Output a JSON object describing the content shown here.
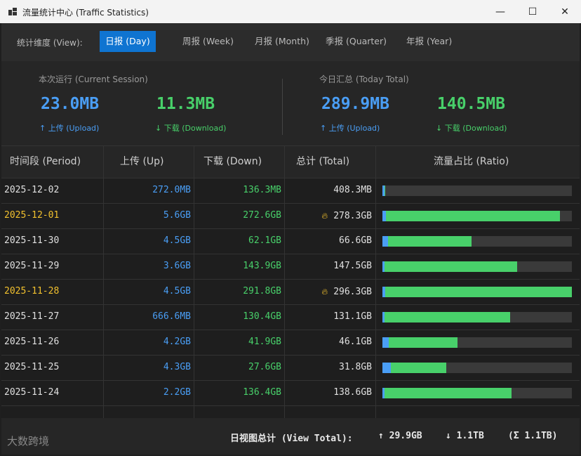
{
  "window": {
    "title": "流量统计中心 (Traffic Statistics)",
    "minimize": "—",
    "maximize": "☐",
    "close": "✕"
  },
  "tabs": {
    "label": "统计维度 (View):",
    "items": [
      {
        "label": "日报 (Day)",
        "active": true
      },
      {
        "label": "周报 (Week)",
        "active": false
      },
      {
        "label": "月报 (Month)",
        "active": false
      },
      {
        "label": "季报 (Quarter)",
        "active": false
      },
      {
        "label": "年报 (Year)",
        "active": false
      }
    ]
  },
  "summary": {
    "session": {
      "title": "本次运行 (Current Session)",
      "upload": "23.0MB",
      "download": "11.3MB",
      "upload_label": "↑ 上传 (Upload)",
      "download_label": "↓ 下载 (Download)"
    },
    "today": {
      "title": "今日汇总 (Today Total)",
      "upload": "289.9MB",
      "download": "140.5MB",
      "upload_label": "↑ 上传 (Upload)",
      "download_label": "↓ 下载 (Download)"
    }
  },
  "table": {
    "headers": {
      "period": "时间段 (Period)",
      "up": "上传 (Up)",
      "down": "下载 (Down)",
      "total": "总计 (Total)",
      "ratio": "流量占比 (Ratio)"
    },
    "rows": [
      {
        "date": "2025-12-02",
        "up": "272.0MB",
        "down": "136.3MB",
        "total": "408.3MB",
        "peak": false,
        "up_frac": 0.009,
        "down_frac": 0.0046
      },
      {
        "date": "2025-12-01",
        "up": "5.6GB",
        "down": "272.6GB",
        "total": "278.3GB",
        "peak": true,
        "up_frac": 0.019,
        "down_frac": 0.92
      },
      {
        "date": "2025-11-30",
        "up": "4.5GB",
        "down": "62.1GB",
        "total": "66.6GB",
        "peak": false,
        "up_frac": 0.03,
        "down_frac": 0.44
      },
      {
        "date": "2025-11-29",
        "up": "3.6GB",
        "down": "143.9GB",
        "total": "147.5GB",
        "peak": false,
        "up_frac": 0.012,
        "down_frac": 0.7
      },
      {
        "date": "2025-11-28",
        "up": "4.5GB",
        "down": "291.8GB",
        "total": "296.3GB",
        "peak": true,
        "up_frac": 0.015,
        "down_frac": 0.985
      },
      {
        "date": "2025-11-27",
        "up": "666.6MB",
        "down": "130.4GB",
        "total": "131.1GB",
        "peak": false,
        "up_frac": 0.002,
        "down_frac": 0.662
      },
      {
        "date": "2025-11-26",
        "up": "4.2GB",
        "down": "41.9GB",
        "total": "46.1GB",
        "peak": false,
        "up_frac": 0.032,
        "down_frac": 0.362
      },
      {
        "date": "2025-11-25",
        "up": "4.3GB",
        "down": "27.6GB",
        "total": "31.8GB",
        "peak": false,
        "up_frac": 0.043,
        "down_frac": 0.292
      },
      {
        "date": "2025-11-24",
        "up": "2.2GB",
        "down": "136.4GB",
        "total": "138.6GB",
        "peak": false,
        "up_frac": 0.011,
        "down_frac": 0.67
      }
    ]
  },
  "footer": {
    "label": "日视图总计 (View Total):",
    "up": "↑ 29.9GB",
    "down": "↓ 1.1TB",
    "sum": "(Σ 1.1TB)",
    "watermark": "大数跨境"
  },
  "colors": {
    "accent": "#0f74d1",
    "upload": "#4a9ef5",
    "download": "#48d06a",
    "peak": "#f2c12e"
  }
}
